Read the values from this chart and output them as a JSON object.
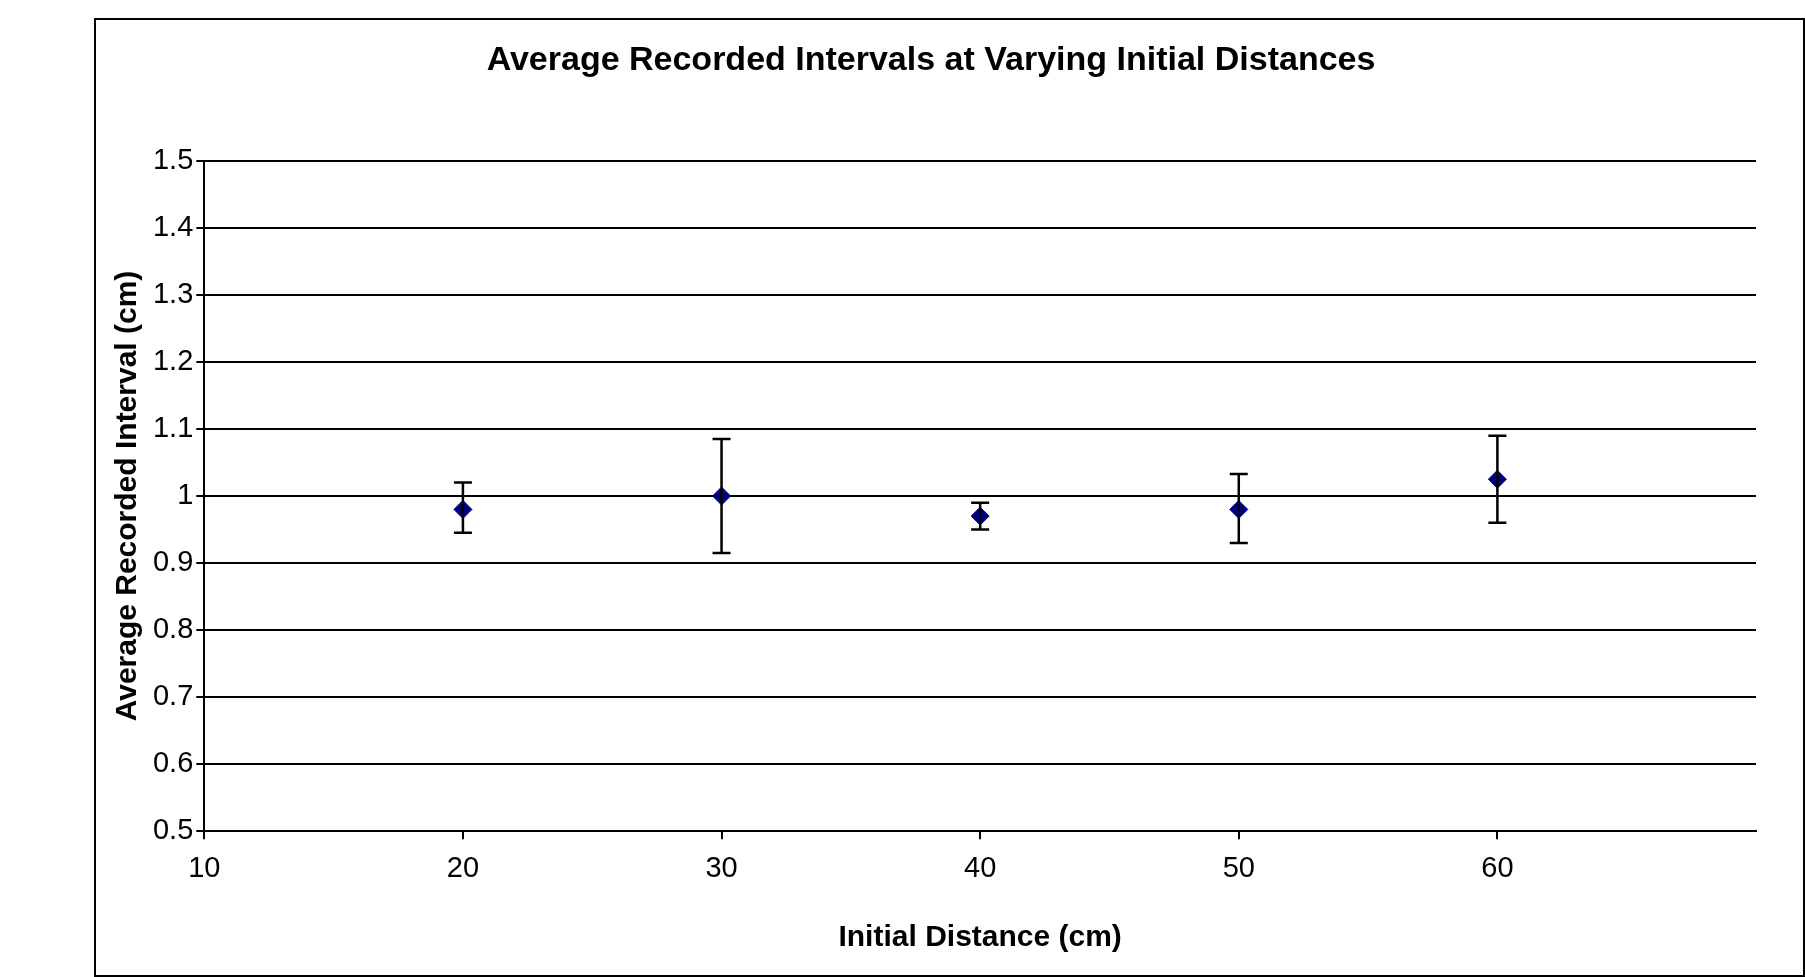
{
  "chart_data": {
    "type": "scatter",
    "title": "Average Recorded Intervals at Varying Initial Distances",
    "xlabel": "Initial Distance (cm)",
    "ylabel": "Average Recorded Interval (cm)",
    "x": [
      20,
      30,
      40,
      50,
      60
    ],
    "series": [
      {
        "color": "#000080",
        "values": [
          0.98,
          1.0,
          0.97,
          0.98,
          1.025
        ],
        "errors": [
          [
            0.945,
            1.02
          ],
          [
            0.915,
            1.085
          ],
          [
            0.95,
            0.99
          ],
          [
            0.93,
            1.033
          ],
          [
            0.96,
            1.09
          ]
        ]
      }
    ],
    "xlim": [
      10,
      70
    ],
    "xticks": [
      10,
      20,
      30,
      40,
      50,
      60
    ],
    "ylim": [
      0.5,
      1.5
    ],
    "yticks": [
      0.5,
      0.6,
      0.7,
      0.8,
      0.9,
      1,
      1.1,
      1.2,
      1.3,
      1.4,
      1.5
    ],
    "grid": "y",
    "legend": false,
    "marker": "diamond"
  }
}
